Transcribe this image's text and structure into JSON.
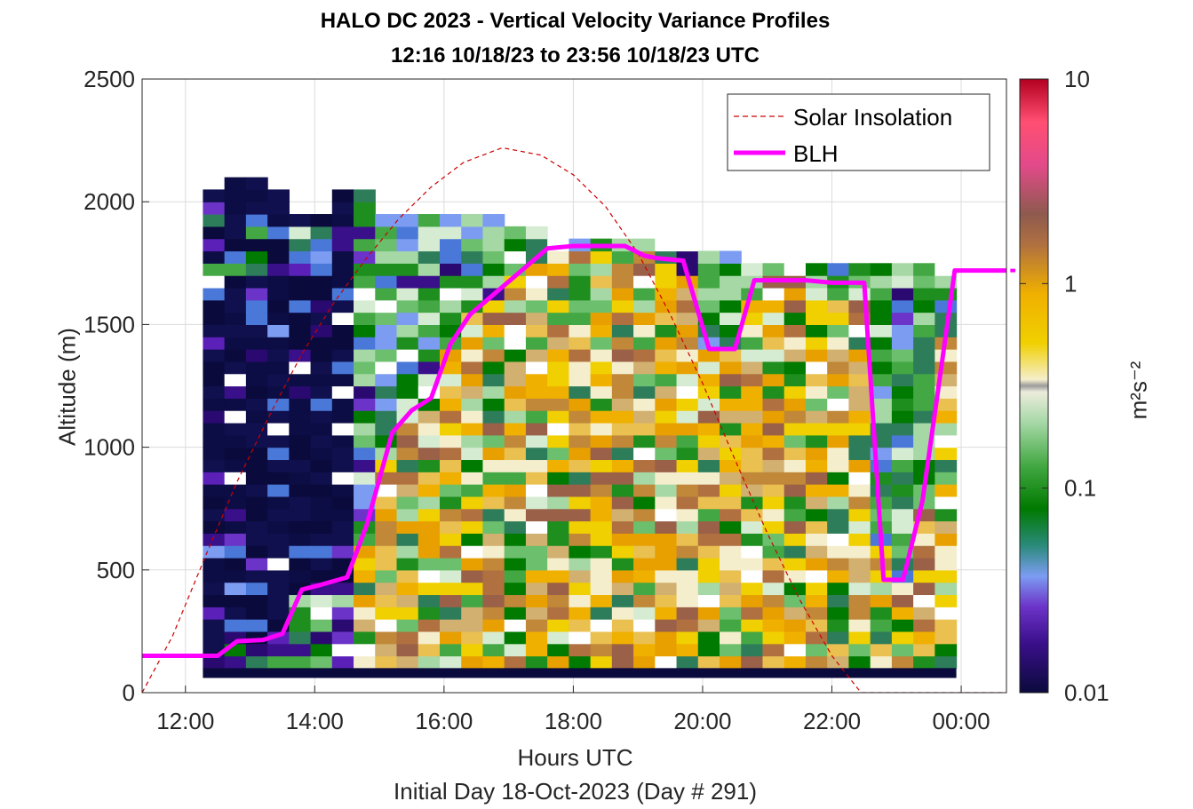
{
  "chart_data": {
    "type": "heatmap",
    "title": "HALO DC 2023 - Vertical Velocity Variance Profiles",
    "subtitle": "12:16 10/18/23 to 23:56 10/18/23  UTC",
    "xlabel": "Hours UTC",
    "ylabel": "Altitude (m)",
    "footnote": "Initial Day 18-Oct-2023 (Day # 291)",
    "x_ticks": [
      "12:00",
      "14:00",
      "16:00",
      "18:00",
      "20:00",
      "22:00",
      "00:00"
    ],
    "x_tick_values": [
      12,
      14,
      16,
      18,
      20,
      22,
      24
    ],
    "xlim": [
      11.33,
      24.7
    ],
    "y_ticks": [
      "0",
      "500",
      "1000",
      "1500",
      "2000",
      "2500"
    ],
    "y_tick_values": [
      0,
      500,
      1000,
      1500,
      2000,
      2500
    ],
    "ylim": [
      0,
      2500
    ],
    "grid": true,
    "legend_position": "top-right",
    "colorbar": {
      "label": "m²s⁻²",
      "scale": "log",
      "range": [
        0.01,
        10
      ],
      "ticks": [
        "0.01",
        "0.1",
        "1",
        "10"
      ],
      "tick_values": [
        0.01,
        0.1,
        1,
        10
      ]
    },
    "heatmap_grid": {
      "x_start": 12.27,
      "x_step": 0.333,
      "columns": 35,
      "y_start": 100,
      "y_step": 50,
      "rows": 40,
      "column_tops_m": [
        2050,
        2100,
        2100,
        2050,
        1950,
        1950,
        2050,
        2050,
        1950,
        1950,
        1950,
        1950,
        1950,
        1950,
        1900,
        1900,
        1850,
        1850,
        1850,
        1850,
        1850,
        1850,
        1850,
        1800,
        1800,
        1750,
        1750,
        1750,
        1750,
        1750,
        1750,
        1750,
        1750,
        1750,
        1750
      ],
      "column_bottoms_m": [
        100,
        100,
        100,
        100,
        100,
        100,
        100,
        100,
        100,
        100,
        100,
        100,
        100,
        100,
        100,
        100,
        100,
        100,
        100,
        100,
        100,
        100,
        100,
        100,
        100,
        100,
        100,
        100,
        100,
        100,
        100,
        100,
        100,
        100,
        100
      ]
    },
    "series": [
      {
        "name": "Solar Insolation",
        "style": "dashed",
        "color": "#cc0000",
        "x": [
          11.33,
          11.8,
          12.3,
          12.8,
          13.3,
          13.8,
          14.3,
          14.8,
          15.3,
          15.8,
          16.3,
          16.9,
          17.5,
          18.0,
          18.5,
          19.0,
          19.5,
          20.0,
          20.5,
          21.0,
          21.5,
          22.0,
          22.45,
          24.7
        ],
        "y": [
          0,
          230,
          550,
          860,
          1130,
          1380,
          1590,
          1770,
          1930,
          2060,
          2160,
          2220,
          2190,
          2110,
          1980,
          1790,
          1540,
          1260,
          950,
          650,
          380,
          150,
          0,
          0
        ]
      },
      {
        "name": "BLH",
        "style": "solid",
        "color": "#ff00ff",
        "x": [
          11.33,
          12.5,
          12.8,
          13.2,
          13.5,
          13.8,
          14.1,
          14.5,
          14.8,
          15.0,
          15.2,
          15.5,
          15.8,
          16.1,
          16.4,
          16.8,
          17.2,
          17.6,
          18.0,
          18.4,
          18.8,
          19.1,
          19.3,
          19.7,
          20.1,
          20.5,
          20.8,
          21.2,
          21.6,
          22.0,
          22.3,
          22.5,
          22.8,
          23.1,
          23.4,
          23.7,
          23.9,
          24.1,
          24.7
        ],
        "y": [
          150,
          150,
          210,
          215,
          240,
          420,
          440,
          470,
          680,
          870,
          1060,
          1150,
          1200,
          1420,
          1540,
          1630,
          1720,
          1810,
          1820,
          1820,
          1820,
          1780,
          1770,
          1760,
          1400,
          1400,
          1680,
          1680,
          1680,
          1670,
          1670,
          1670,
          460,
          460,
          780,
          1340,
          1720,
          1720,
          1720
        ]
      }
    ]
  }
}
